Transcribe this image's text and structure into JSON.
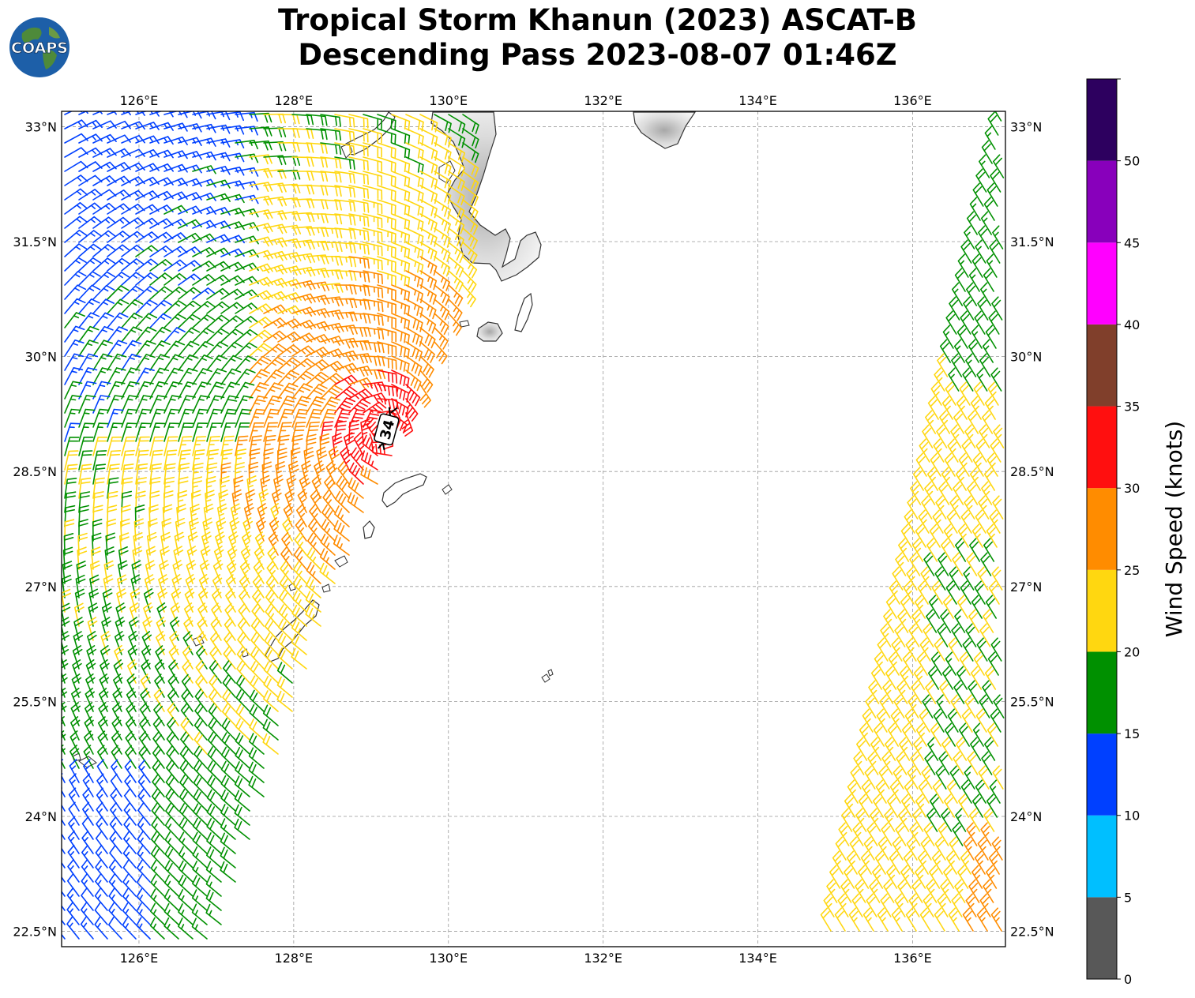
{
  "title_line1": "Tropical Storm Khanun (2023) ASCAT-B",
  "title_line2": "Descending Pass 2023-08-07 01:46Z",
  "logo_text": "COAPS",
  "map": {
    "lon_range": [
      125.0,
      137.2
    ],
    "lat_range": [
      22.3,
      33.2
    ],
    "lon_ticks": [
      "126°E",
      "128°E",
      "130°E",
      "132°E",
      "134°E",
      "136°E"
    ],
    "lat_ticks": [
      "33°N",
      "31.5°N",
      "30°N",
      "28.5°N",
      "27°N",
      "25.5°N",
      "24°N",
      "22.5°N"
    ],
    "storm_marker_label": "34",
    "storm_center": {
      "lon": 129.2,
      "lat": 29.05
    }
  },
  "colorbar": {
    "label": "Wind Speed (knots)",
    "ticks": [
      "0",
      "5",
      "10",
      "15",
      "20",
      "25",
      "30",
      "35",
      "40",
      "45",
      "50"
    ],
    "bins": [
      {
        "min": 0,
        "max": 5,
        "color": "#585858"
      },
      {
        "min": 5,
        "max": 10,
        "color": "#00bfff"
      },
      {
        "min": 10,
        "max": 15,
        "color": "#0040ff"
      },
      {
        "min": 15,
        "max": 20,
        "color": "#009000"
      },
      {
        "min": 20,
        "max": 25,
        "color": "#ffd710"
      },
      {
        "min": 25,
        "max": 30,
        "color": "#ff8c00"
      },
      {
        "min": 30,
        "max": 35,
        "color": "#ff0f0f"
      },
      {
        "min": 35,
        "max": 40,
        "color": "#803f2b"
      },
      {
        "min": 40,
        "max": 45,
        "color": "#ff00ff"
      },
      {
        "min": 45,
        "max": 50,
        "color": "#8800bb"
      },
      {
        "min": 50,
        "max": 55,
        "color": "#2d005f"
      }
    ]
  }
}
